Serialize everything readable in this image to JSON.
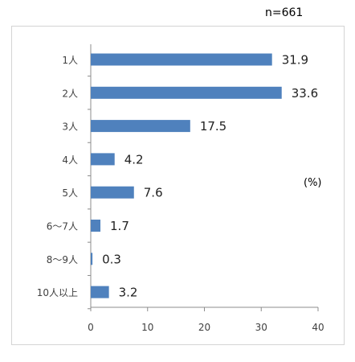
{
  "header": {
    "sample_size": "n=661"
  },
  "unit_label": "(%)",
  "chart_data": {
    "type": "bar",
    "orientation": "horizontal",
    "categories": [
      "1人",
      "2人",
      "3人",
      "4人",
      "5人",
      "6〜7人",
      "8〜9人",
      "10人以上"
    ],
    "values": [
      31.9,
      33.6,
      17.5,
      4.2,
      7.6,
      1.7,
      0.3,
      3.2
    ],
    "value_labels": [
      "31.9",
      "33.6",
      "17.5",
      "4.2",
      "7.6",
      "1.7",
      "0.3",
      "3.2"
    ],
    "xlim": [
      0,
      40
    ],
    "xticks": [
      "0",
      "10",
      "20",
      "30",
      "40"
    ],
    "xtick_values": [
      0,
      10,
      20,
      30,
      40
    ],
    "bar_color": "#4f81bd",
    "grid": false,
    "legend": "none"
  }
}
